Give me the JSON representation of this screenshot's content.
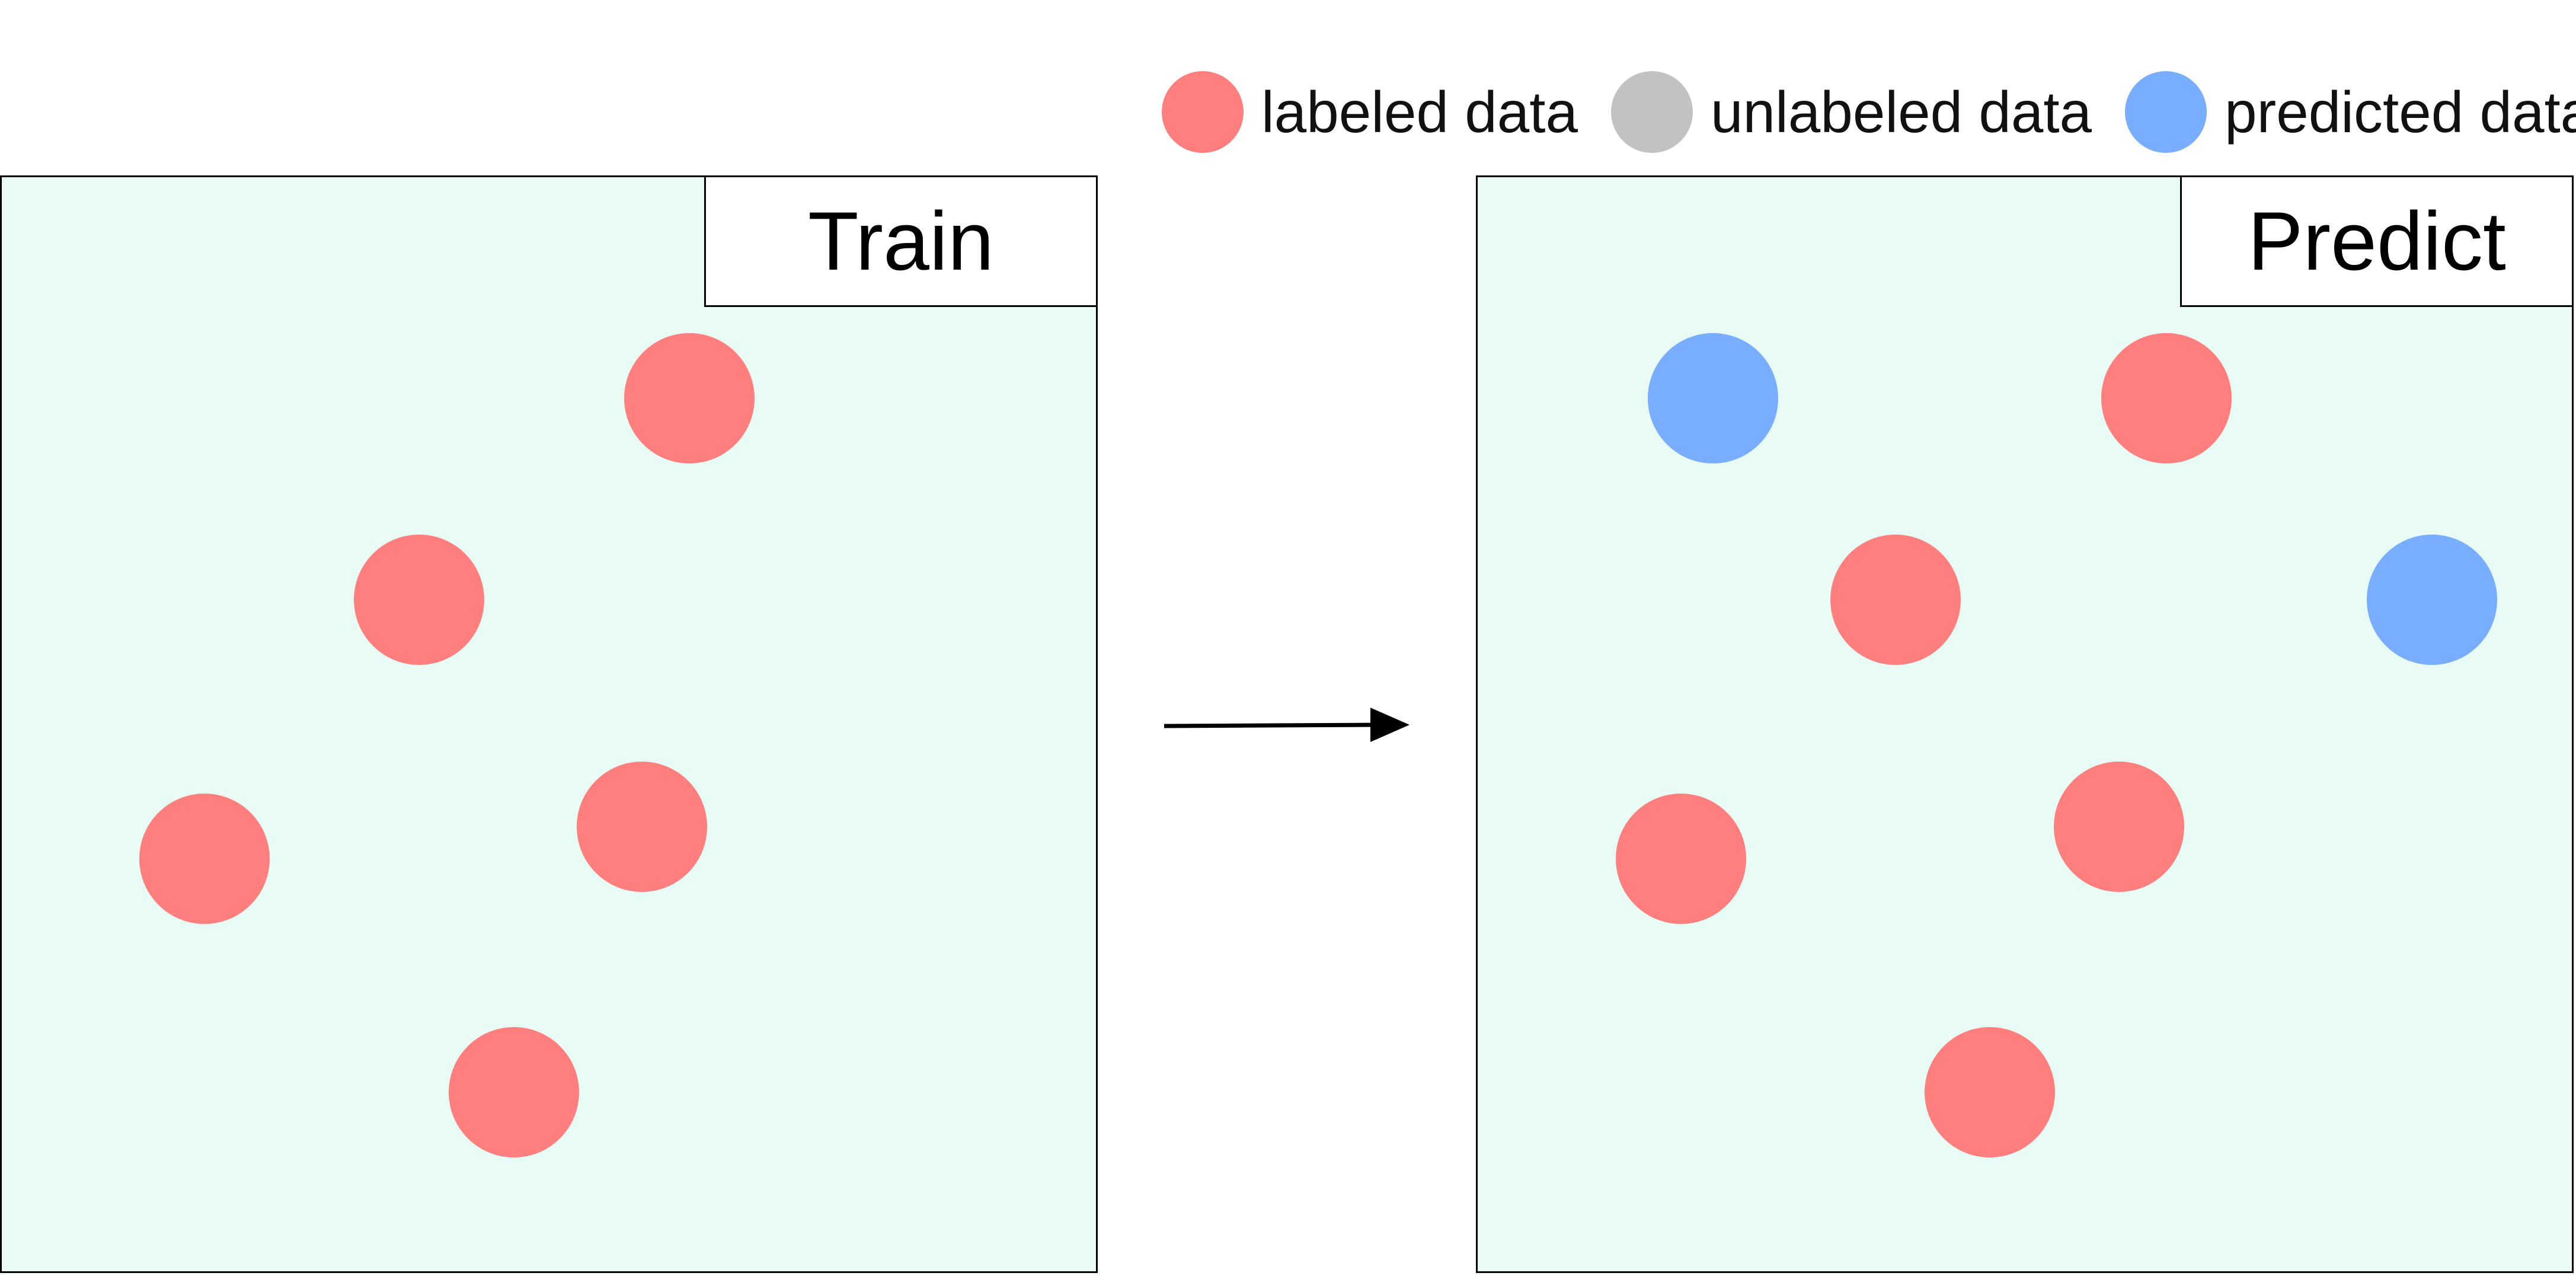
{
  "colors": {
    "labeled": "#ff7f7f",
    "unlabeled": "#c2c2c2",
    "predicted": "#79adff",
    "panel_background": "#e8fcf5"
  },
  "legend": [
    {
      "key": "labeled",
      "label": "labeled data"
    },
    {
      "key": "unlabeled",
      "label": "unlabeled data"
    },
    {
      "key": "predicted",
      "label": "predicted data"
    }
  ],
  "panels": {
    "train": {
      "title": "Train",
      "points": [
        {
          "kind": "labeled"
        },
        {
          "kind": "labeled"
        },
        {
          "kind": "labeled"
        },
        {
          "kind": "labeled"
        },
        {
          "kind": "labeled"
        }
      ]
    },
    "predict": {
      "title": "Predict",
      "points": [
        {
          "kind": "predicted"
        },
        {
          "kind": "labeled"
        },
        {
          "kind": "labeled"
        },
        {
          "kind": "predicted"
        },
        {
          "kind": "labeled"
        },
        {
          "kind": "labeled"
        },
        {
          "kind": "labeled"
        }
      ]
    }
  },
  "arrow_icon": "right-arrow-icon"
}
